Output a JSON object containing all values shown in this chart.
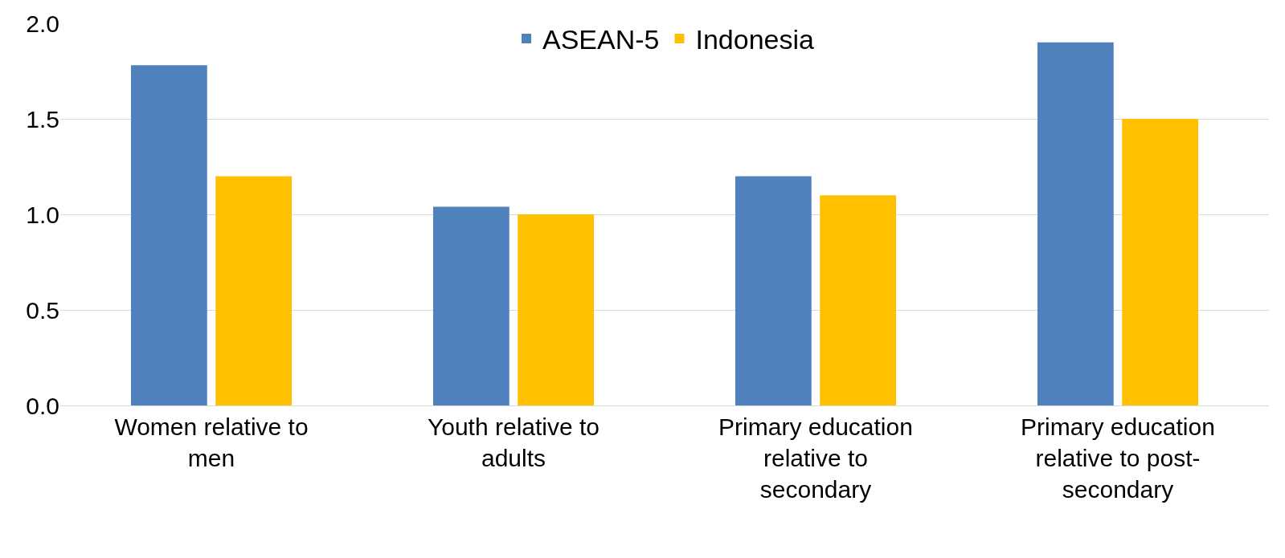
{
  "chart_data": {
    "type": "bar",
    "categories": [
      "Women relative to men",
      "Youth relative to adults",
      "Primary education relative to secondary",
      "Primary education relative to post-secondary"
    ],
    "series": [
      {
        "name": "ASEAN-5",
        "color": "#4f81bd",
        "values": [
          1.78,
          1.04,
          1.2,
          1.9
        ]
      },
      {
        "name": "Indonesia",
        "color": "#ffc000",
        "values": [
          1.2,
          1.0,
          1.1,
          1.5
        ]
      }
    ],
    "ylim": [
      0,
      2
    ],
    "yticks": [
      {
        "value": 0,
        "label": "0.0"
      },
      {
        "value": 0.5,
        "label": "0.5"
      },
      {
        "value": 1,
        "label": "1.0"
      },
      {
        "value": 1.5,
        "label": "1.5"
      },
      {
        "value": 2,
        "label": "2.0"
      }
    ],
    "grid": "y",
    "legend": "top"
  }
}
